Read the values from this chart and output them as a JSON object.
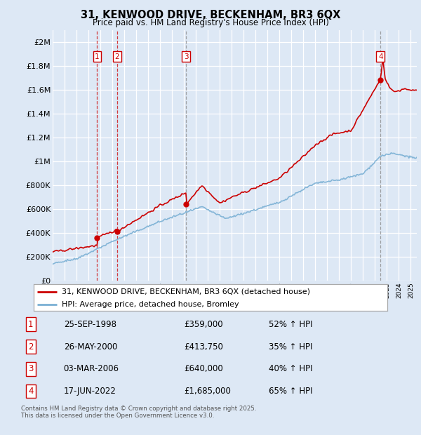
{
  "title": "31, KENWOOD DRIVE, BECKENHAM, BR3 6QX",
  "subtitle": "Price paid vs. HM Land Registry's House Price Index (HPI)",
  "ylabel_ticks": [
    "£0",
    "£200K",
    "£400K",
    "£600K",
    "£800K",
    "£1M",
    "£1.2M",
    "£1.4M",
    "£1.6M",
    "£1.8M",
    "£2M"
  ],
  "ytick_vals": [
    0,
    200000,
    400000,
    600000,
    800000,
    1000000,
    1200000,
    1400000,
    1600000,
    1800000,
    2000000
  ],
  "ylim": [
    0,
    2100000
  ],
  "background_color": "#dde8f5",
  "plot_bg_color": "#dde8f5",
  "grid_color": "#ffffff",
  "sale_color": "#cc0000",
  "hpi_color": "#7ab0d4",
  "sale_points": [
    {
      "year": 1998.73,
      "price": 359000,
      "label": "1"
    },
    {
      "year": 2000.4,
      "price": 413750,
      "label": "2"
    },
    {
      "year": 2006.17,
      "price": 640000,
      "label": "3"
    },
    {
      "year": 2022.46,
      "price": 1685000,
      "label": "4"
    }
  ],
  "vline_years": [
    1998.73,
    2000.4,
    2006.17,
    2022.46
  ],
  "legend_sale_label": "31, KENWOOD DRIVE, BECKENHAM, BR3 6QX (detached house)",
  "legend_hpi_label": "HPI: Average price, detached house, Bromley",
  "table_rows": [
    {
      "num": "1",
      "date": "25-SEP-1998",
      "price": "£359,000",
      "hpi": "52% ↑ HPI"
    },
    {
      "num": "2",
      "date": "26-MAY-2000",
      "price": "£413,750",
      "hpi": "35% ↑ HPI"
    },
    {
      "num": "3",
      "date": "03-MAR-2006",
      "price": "£640,000",
      "hpi": "40% ↑ HPI"
    },
    {
      "num": "4",
      "date": "17-JUN-2022",
      "price": "£1,685,000",
      "hpi": "65% ↑ HPI"
    }
  ],
  "footer": "Contains HM Land Registry data © Crown copyright and database right 2025.\nThis data is licensed under the Open Government Licence v3.0.",
  "xmin": 1995,
  "xmax": 2025.5
}
